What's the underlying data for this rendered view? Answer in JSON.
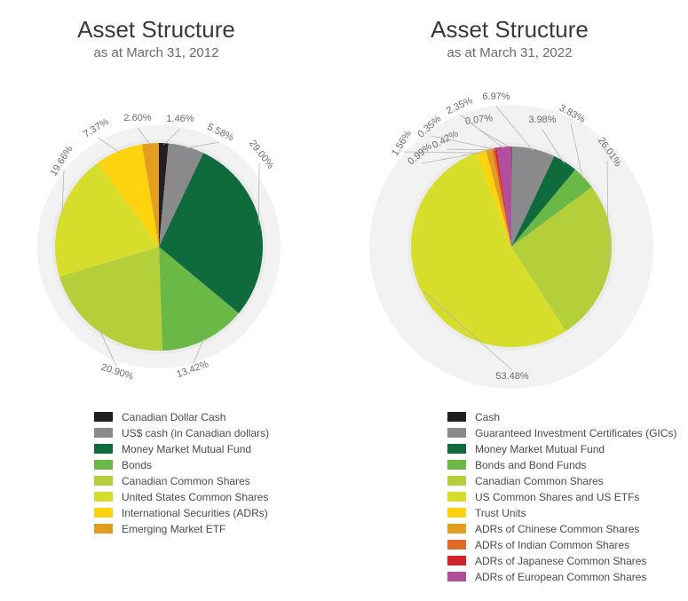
{
  "chart_data": [
    {
      "type": "pie",
      "title": "Asset Structure",
      "subtitle": "as at March 31, 2012",
      "series": [
        {
          "name": "Canadian Dollar Cash",
          "value": 1.46,
          "label": "1.46%",
          "color": "#231f20"
        },
        {
          "name": "US$ cash (in Canadian dollars)",
          "value": 5.58,
          "label": "5.58%",
          "color": "#8a8a8c"
        },
        {
          "name": "Money Market Mutual Fund",
          "value": 29.0,
          "label": "29.00%",
          "color": "#0f6a3c"
        },
        {
          "name": "Bonds",
          "value": 13.42,
          "label": "13.42%",
          "color": "#6ab845"
        },
        {
          "name": "Canadian Common Shares",
          "value": 20.9,
          "label": "20.90%",
          "color": "#b4cf3a"
        },
        {
          "name": "United States Common Shares",
          "value": 19.66,
          "label": "19.66%",
          "color": "#d6de2b"
        },
        {
          "name": "International Securities (ADRs)",
          "value": 7.37,
          "label": "7.37%",
          "color": "#fdd20e"
        },
        {
          "name": "Emerging Market ETF",
          "value": 2.6,
          "label": "2.60%",
          "color": "#e39e20"
        }
      ]
    },
    {
      "type": "pie",
      "title": "Asset Structure",
      "subtitle": "as at March 31, 2022",
      "series": [
        {
          "name": "Cash",
          "value": 0.07,
          "label": "0.07%",
          "color": "#231f20"
        },
        {
          "name": "Guaranteed Investment Certificates (GICs)",
          "value": 6.97,
          "label": "6.97%",
          "color": "#8a8a8c"
        },
        {
          "name": "Money Market Mutual Fund",
          "value": 3.98,
          "label": "3.98%",
          "color": "#0f6a3c"
        },
        {
          "name": "Bonds and Bond Funds",
          "value": 3.83,
          "label": "3.83%",
          "color": "#6ab845"
        },
        {
          "name": "Canadian Common Shares",
          "value": 26.01,
          "label": "26.01%",
          "color": "#b4cf3a"
        },
        {
          "name": "US Common Shares and US ETFs",
          "value": 53.48,
          "label": "53.48%",
          "color": "#d6de2b"
        },
        {
          "name": "Trust Units",
          "value": 1.56,
          "label": "1.56%",
          "color": "#fdd20e"
        },
        {
          "name": "ADRs of Chinese Common Shares",
          "value": 0.99,
          "label": "0.99%",
          "color": "#e39e20"
        },
        {
          "name": "ADRs of Indian Common Shares",
          "value": 0.42,
          "label": "0.42%",
          "color": "#e06a28"
        },
        {
          "name": "ADRs of Japanese Common Shares",
          "value": 0.35,
          "label": "0.35%",
          "color": "#d2232a"
        },
        {
          "name": "ADRs of European Common Shares",
          "value": 2.35,
          "label": "2.35%",
          "color": "#b0509c"
        }
      ]
    }
  ]
}
